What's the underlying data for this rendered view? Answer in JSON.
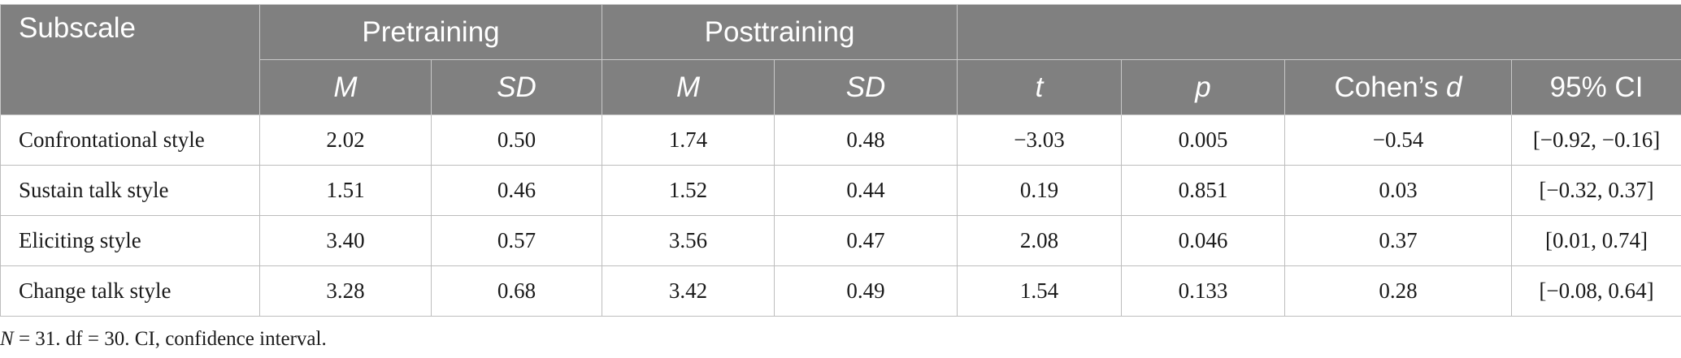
{
  "table": {
    "header": {
      "subscale": "Subscale",
      "pretraining": "Pretraining",
      "posttraining": "Posttraining",
      "pre_m": "M",
      "pre_sd": "SD",
      "post_m": "M",
      "post_sd": "SD",
      "t": "t",
      "p": "p",
      "cohens_prefix": "Cohen’s ",
      "cohens_d": "d",
      "ci": "95% CI"
    },
    "rows": [
      {
        "subscale": "Confrontational style",
        "pre_m": "2.02",
        "pre_sd": "0.50",
        "post_m": "1.74",
        "post_sd": "0.48",
        "t": "−3.03",
        "p": "0.005",
        "d": "−0.54",
        "ci": "[−0.92, −0.16]"
      },
      {
        "subscale": "Sustain talk style",
        "pre_m": "1.51",
        "pre_sd": "0.46",
        "post_m": "1.52",
        "post_sd": "0.44",
        "t": "0.19",
        "p": "0.851",
        "d": "0.03",
        "ci": "[−0.32, 0.37]"
      },
      {
        "subscale": "Eliciting style",
        "pre_m": "3.40",
        "pre_sd": "0.57",
        "post_m": "3.56",
        "post_sd": "0.47",
        "t": "2.08",
        "p": "0.046",
        "d": "0.37",
        "ci": "[0.01, 0.74]"
      },
      {
        "subscale": "Change talk style",
        "pre_m": "3.28",
        "pre_sd": "0.68",
        "post_m": "3.42",
        "post_sd": "0.49",
        "t": "1.54",
        "p": "0.133",
        "d": "0.28",
        "ci": "[−0.08, 0.64]"
      }
    ]
  },
  "note": {
    "n_symbol": "N",
    "rest": " = 31. df = 30. CI, confidence interval."
  }
}
